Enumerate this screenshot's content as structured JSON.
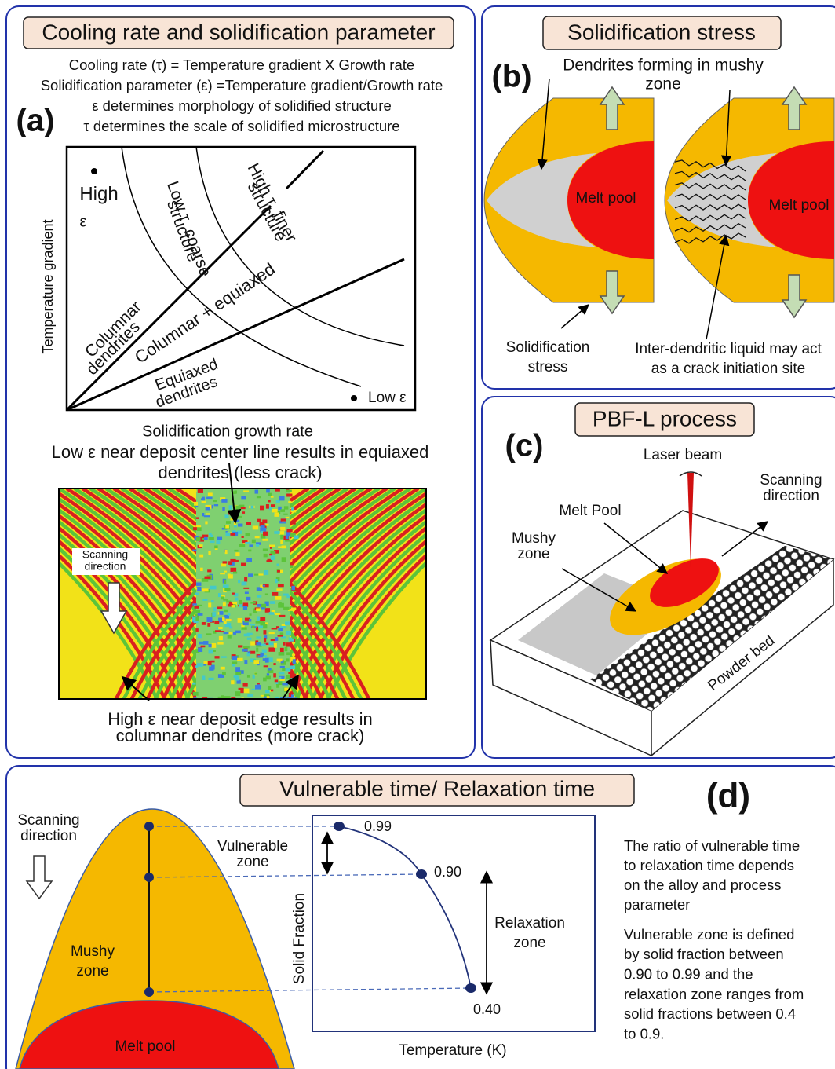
{
  "panel_a": {
    "label": "(a)",
    "title": "Cooling rate and solidification parameter",
    "definitions": [
      "Cooling rate (τ) = Temperature gradient X Growth rate",
      "Solidification parameter (ε) =Temperature gradient/Growth rate",
      "ε determines morphology of solidified structure",
      "τ determines the scale of solidified microstructure"
    ],
    "map": {
      "y_axis": "Temperature gradient",
      "x_axis": "Solidification growth rate",
      "high": "High",
      "high_symbol": "ε",
      "low": "Low ε",
      "low_tau": [
        "Low τ, coarse",
        "structure"
      ],
      "high_tau": [
        "High τ, finer",
        "structure"
      ],
      "columnar": [
        "Columnar",
        "dendrites"
      ],
      "mixed": "Columnar + equiaxed",
      "equiaxed": [
        "Equiaxed",
        "dendrites"
      ]
    },
    "center_note": [
      "Low ε near deposit center line results in equiaxed",
      "dendrites (less crack)"
    ],
    "scanning": [
      "Scanning",
      "direction"
    ],
    "edge_note": [
      "High ε near deposit edge results in",
      "columnar dendrites (more crack)"
    ]
  },
  "panel_b": {
    "label": "(b)",
    "title": "Solidification stress",
    "dendrites_note": [
      "Dendrites forming in mushy",
      "zone"
    ],
    "melt_pool": "Melt pool",
    "stress": [
      "Solidification",
      "stress"
    ],
    "crack_note": [
      "Inter-dendritic liquid may act",
      "as a crack initiation site"
    ]
  },
  "panel_c": {
    "label": "(c)",
    "title": "PBF-L process",
    "laser": "Laser beam",
    "scanning": [
      "Scanning",
      "direction"
    ],
    "melt_pool": "Melt Pool",
    "mushy": [
      "Mushy",
      "zone"
    ],
    "powder": "Powder bed"
  },
  "panel_d": {
    "label": "(d)",
    "title": "Vulnerable time/ Relaxation time",
    "scanning": [
      "Scanning",
      "direction"
    ],
    "mushy": [
      "Mushy",
      "zone"
    ],
    "melt_pool": "Melt pool",
    "vulnerable": [
      "Vulnerable",
      "zone"
    ],
    "relaxation": [
      "Relaxation",
      "zone"
    ],
    "y_axis": "Solid Fraction",
    "x_axis": "Temperature (K)",
    "points": [
      "0.99",
      "0.90",
      "0.40"
    ],
    "ratio_text": [
      "The ratio of vulnerable time",
      "to relaxation time depends",
      "on the alloy and process",
      "parameter"
    ],
    "definition_text": [
      "Vulnerable zone is defined",
      "by solid fraction between",
      "0.90 to 0.99 and the",
      "relaxation zone ranges from",
      "solid fractions between 0.4",
      "to 0.9."
    ]
  }
}
